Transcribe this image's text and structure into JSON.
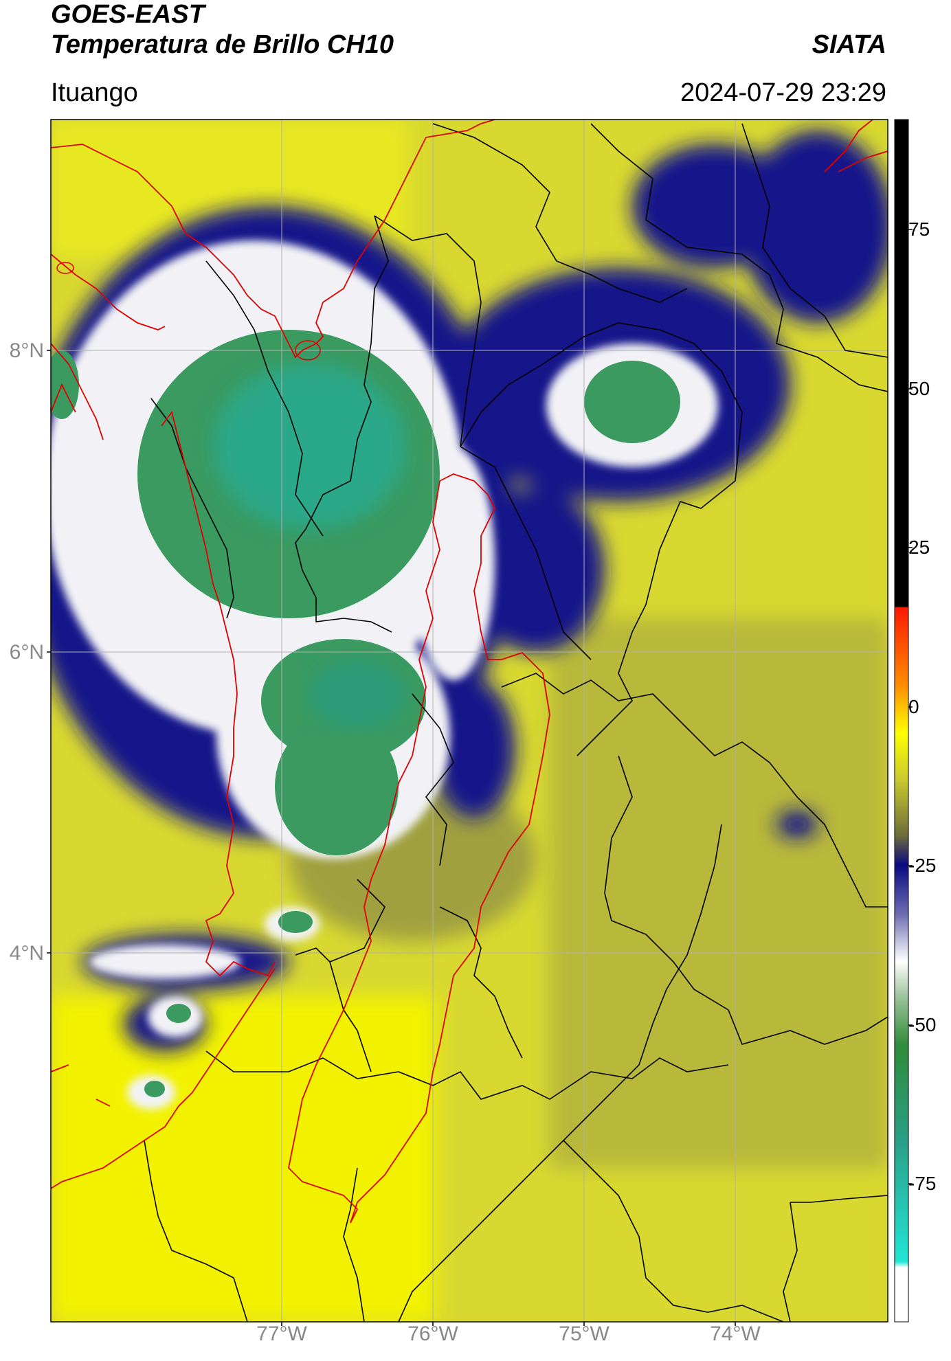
{
  "header": {
    "title_line1": "GOES-EAST",
    "title_line2": "Temperatura de Brillo CH10",
    "brand": "SIATA",
    "location": "Ituango",
    "timestamp": "2024-07-29 23:29"
  },
  "map": {
    "lat_labels": [
      "8°N",
      "6°N",
      "4°N"
    ],
    "lon_labels": [
      "77°W",
      "76°W",
      "75°W",
      "74°W"
    ],
    "border_colors": {
      "country": "#e00000",
      "admin": "#000000",
      "grid": "#b0b0b0"
    }
  },
  "colorbar": {
    "ticks": [
      "75",
      "50",
      "25",
      "0",
      "-25",
      "-50",
      "-75"
    ],
    "colors": {
      "warm_black": "#000000",
      "red": "#ff1a00",
      "orange": "#ff8c00",
      "yellow": "#ffff00",
      "olive": "#8a8a2a",
      "navy": "#0a0a80",
      "white": "#ffffff",
      "green": "#2e8b3a",
      "cyan": "#22e5d5"
    }
  }
}
